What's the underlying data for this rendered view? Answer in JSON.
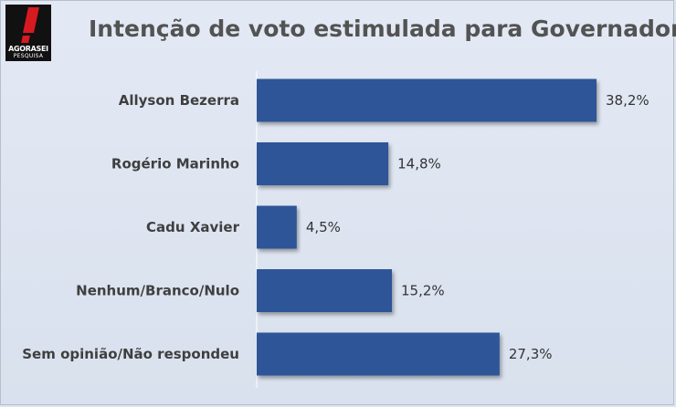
{
  "header": {
    "title": "Intenção de voto estimulada para Governador",
    "logo_brand": "AGORASEI",
    "logo_sub": "PESQUISA"
  },
  "colors": {
    "bar": "#2f5597",
    "background": "#dde4f0",
    "logo_accent": "#d71920"
  },
  "chart_data": {
    "type": "bar",
    "orientation": "horizontal",
    "title": "Intenção de voto estimulada para Governador",
    "categories": [
      "Allyson Bezerra",
      "Rogério Marinho",
      "Cadu Xavier",
      "Nenhum/Branco/Nulo",
      "Sem opinião/Não respondeu"
    ],
    "values": [
      38.2,
      14.8,
      4.5,
      15.2,
      27.3
    ],
    "value_labels": [
      "38,2%",
      "14,8%",
      "4,5%",
      "15,2%",
      "27,3%"
    ],
    "xlim": [
      0,
      38.2
    ],
    "grid": false,
    "legend": "none"
  }
}
